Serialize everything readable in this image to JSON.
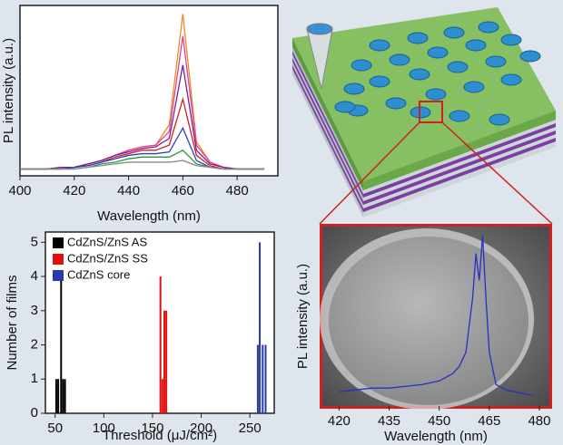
{
  "chart_data": [
    {
      "type": "line",
      "xlabel": "Wavelength (nm)",
      "ylabel": "PL intensity (a.u.)",
      "x": [
        400,
        405,
        410,
        415,
        420,
        425,
        430,
        435,
        440,
        445,
        450,
        455,
        460,
        465,
        470,
        475,
        480,
        485,
        490
      ],
      "series": [
        {
          "color": "#f08a24",
          "values": [
            4,
            4,
            4,
            5,
            5,
            7,
            9,
            12,
            15,
            17,
            18,
            30,
            95,
            20,
            8,
            5,
            4,
            4,
            4
          ]
        },
        {
          "color": "#e0409a",
          "values": [
            4,
            4,
            4,
            5,
            5,
            7,
            9,
            12,
            15,
            17,
            18,
            26,
            82,
            18,
            8,
            5,
            4,
            4,
            4
          ]
        },
        {
          "color": "#7a1f8f",
          "values": [
            4,
            4,
            4,
            5,
            5,
            7,
            9,
            12,
            14,
            16,
            17,
            22,
            65,
            15,
            7,
            5,
            4,
            4,
            4
          ]
        },
        {
          "color": "#d62020",
          "values": [
            4,
            4,
            4,
            4,
            5,
            6,
            8,
            11,
            13,
            15,
            15,
            18,
            45,
            12,
            6,
            4,
            4,
            4,
            4
          ]
        },
        {
          "color": "#2a3fc0",
          "values": [
            4,
            4,
            4,
            4,
            5,
            6,
            8,
            10,
            12,
            13,
            13,
            14,
            28,
            9,
            5,
            4,
            4,
            4,
            4
          ]
        },
        {
          "color": "#1f9a3a",
          "values": [
            4,
            4,
            4,
            4,
            4,
            5,
            7,
            8,
            10,
            11,
            11,
            11,
            15,
            7,
            5,
            4,
            4,
            4,
            4
          ]
        },
        {
          "color": "#888888",
          "values": [
            4,
            4,
            4,
            4,
            4,
            5,
            6,
            7,
            8,
            8,
            8,
            8,
            9,
            6,
            5,
            4,
            4,
            4,
            4
          ]
        }
      ],
      "xlim": [
        400,
        495
      ],
      "xticks": [
        400,
        420,
        440,
        460,
        480
      ],
      "ylim": [
        0,
        100
      ]
    },
    {
      "type": "bar",
      "xlabel": "Threshold (μJ/cm²)",
      "ylabel": "Number of films",
      "series": [
        {
          "name": "CdZnS/ZnS AS",
          "color": "#000000",
          "x": [
            51,
            53,
            56,
            58,
            60
          ],
          "values": [
            1,
            1,
            4,
            1,
            1
          ]
        },
        {
          "name": "CdZnS/ZnS SS",
          "color": "#e01010",
          "x": [
            158,
            160,
            162,
            164
          ],
          "values": [
            4,
            1,
            3,
            3
          ]
        },
        {
          "name": "CdZnS core",
          "color": "#2a3aa8",
          "x": [
            258,
            260,
            263,
            266
          ],
          "values": [
            2,
            5,
            2,
            2
          ]
        }
      ],
      "xlim": [
        40,
        275
      ],
      "xticks": [
        50,
        100,
        150,
        200,
        250
      ],
      "ylim": [
        0,
        5.3
      ],
      "yticks": [
        0,
        1,
        2,
        3,
        4,
        5
      ]
    },
    {
      "type": "line",
      "xlabel": "Wavelength (nm)",
      "ylabel": "PL intensity (a.u.)",
      "x": [
        420,
        425,
        430,
        435,
        440,
        445,
        450,
        452,
        454,
        456,
        458,
        459,
        460,
        461,
        462,
        463,
        464,
        465,
        467,
        470,
        475,
        478
      ],
      "series": [
        {
          "color": "#2530c8",
          "values": [
            8,
            9,
            10,
            10,
            11,
            12,
            14,
            16,
            18,
            22,
            30,
            45,
            60,
            85,
            70,
            95,
            60,
            30,
            12,
            9,
            7,
            6
          ]
        }
      ],
      "xlim": [
        415,
        483
      ],
      "xticks": [
        420,
        435,
        450,
        465,
        480
      ],
      "ylim": [
        0,
        100
      ]
    }
  ]
}
